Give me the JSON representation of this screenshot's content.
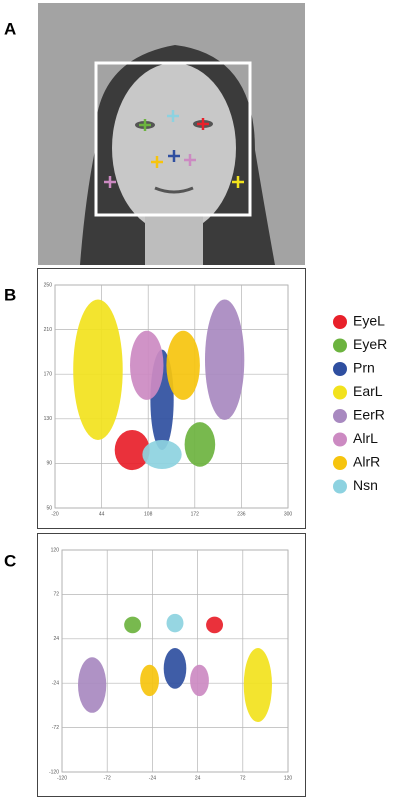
{
  "panels": [
    "A",
    "B",
    "C"
  ],
  "chart_data": [
    {
      "type": "scatter-cluster",
      "xlim": [
        -20,
        300
      ],
      "xticks": [
        -20,
        44,
        108,
        172,
        236,
        300
      ],
      "ylim": [
        50,
        250
      ],
      "yticks": [
        50,
        90,
        130,
        170,
        210,
        250
      ],
      "grid": true,
      "legend": "right",
      "series": [
        {
          "name": "EyeL",
          "color": "#e8202a",
          "x": 86,
          "y": 102,
          "sx": 24,
          "sy": 18
        },
        {
          "name": "EyeR",
          "color": "#6cb33f",
          "x": 179,
          "y": 107,
          "sx": 21,
          "sy": 20
        },
        {
          "name": "Prn",
          "color": "#2f4fa0",
          "x": 127,
          "y": 147,
          "sx": 16,
          "sy": 45
        },
        {
          "name": "EarL",
          "color": "#f2e21d",
          "x": 39,
          "y": 174,
          "sx": 34,
          "sy": 63
        },
        {
          "name": "EerR",
          "color": "#a889c0",
          "x": 213,
          "y": 183,
          "sx": 27,
          "sy": 54
        },
        {
          "name": "AlrL",
          "color": "#cc8ac2",
          "x": 106,
          "y": 178,
          "sx": 23,
          "sy": 31
        },
        {
          "name": "AlrR",
          "color": "#f6c40e",
          "x": 156,
          "y": 178,
          "sx": 23,
          "sy": 31
        },
        {
          "name": "Nsn",
          "color": "#8dd2e0",
          "x": 127,
          "y": 98,
          "sx": 27,
          "sy": 13
        }
      ]
    },
    {
      "type": "scatter-cluster",
      "xlim": [
        -120,
        120
      ],
      "xticks": [
        -120,
        -72,
        -24,
        24,
        72,
        120
      ],
      "ylim": [
        -120,
        120
      ],
      "yticks": [
        -120,
        -72,
        -24,
        24,
        72,
        120
      ],
      "grid": true,
      "series": [
        {
          "color": "#e8202a",
          "x": 42,
          "y": 39,
          "sx": 9,
          "sy": 9
        },
        {
          "color": "#6cb33f",
          "x": -45,
          "y": 39,
          "sx": 9,
          "sy": 9
        },
        {
          "color": "#2f4fa0",
          "x": 0,
          "y": -8,
          "sx": 12,
          "sy": 22
        },
        {
          "color": "#f2e21d",
          "x": 88,
          "y": -26,
          "sx": 15,
          "sy": 40
        },
        {
          "color": "#a889c0",
          "x": -88,
          "y": -26,
          "sx": 15,
          "sy": 30
        },
        {
          "color": "#cc8ac2",
          "x": 26,
          "y": -21,
          "sx": 10,
          "sy": 17
        },
        {
          "color": "#f6c40e",
          "x": -27,
          "y": -21,
          "sx": 10,
          "sy": 17
        },
        {
          "color": "#8dd2e0",
          "x": 0,
          "y": 41,
          "sx": 9,
          "sy": 10
        }
      ]
    }
  ]
}
